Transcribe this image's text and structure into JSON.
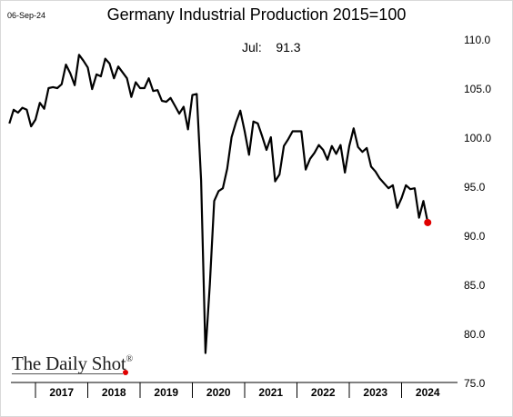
{
  "header": {
    "date": "06-Sep-24"
  },
  "logo_text": "The Daily Shot",
  "logo_mark": "®",
  "colors": {
    "line": "#000000",
    "marker": "#e00000",
    "axis": "#000000"
  },
  "chart_data": {
    "type": "line",
    "title": "Germany Industrial Production 2015=100",
    "annotation": "Jul:    91.3",
    "xlabel": "",
    "ylabel": "",
    "ylim": [
      75,
      110
    ],
    "yticks": [
      "75.0",
      "80.0",
      "85.0",
      "90.0",
      "95.0",
      "100.0",
      "105.0",
      "110.0"
    ],
    "x_tick_labels": [
      "2017",
      "2018",
      "2019",
      "2020",
      "2021",
      "2022",
      "2023",
      "2024"
    ],
    "grid": false,
    "y_axis_position": "right",
    "start_month": "2016-07",
    "end_month": "2024-07",
    "series": [
      {
        "values": [
          101.4,
          102.8,
          102.5,
          103.0,
          102.8,
          101.1,
          101.8,
          103.5,
          102.9,
          105.0,
          105.1,
          105.0,
          105.4,
          107.4,
          106.5,
          105.3,
          108.4,
          107.8,
          107.1,
          104.9,
          106.4,
          106.2,
          108.0,
          107.5,
          106.0,
          107.2,
          106.6,
          106.0,
          104.1,
          105.6,
          105.0,
          105.0,
          106.0,
          104.7,
          104.8,
          103.7,
          103.6,
          104.0,
          103.2,
          102.4,
          103.1,
          100.8,
          104.3,
          104.4,
          95.6,
          78.0,
          85.0,
          93.5,
          94.5,
          94.8,
          96.8,
          100.0,
          101.5,
          102.7,
          100.6,
          98.2,
          101.6,
          101.4,
          100.1,
          98.7,
          100.0,
          95.5,
          96.2,
          99.1,
          99.8,
          100.6,
          100.6,
          100.6,
          96.7,
          97.8,
          98.4,
          99.2,
          98.7,
          97.7,
          99.1,
          98.3,
          99.2,
          96.4,
          99.1,
          100.9,
          99.0,
          98.5,
          98.9,
          97.0,
          96.5,
          95.8,
          95.3,
          94.8,
          95.1,
          92.8,
          93.8,
          95.1,
          94.7,
          94.8,
          91.8,
          93.5,
          91.3
        ]
      }
    ],
    "last_point": {
      "label": "Jul",
      "value": 91.3
    }
  }
}
